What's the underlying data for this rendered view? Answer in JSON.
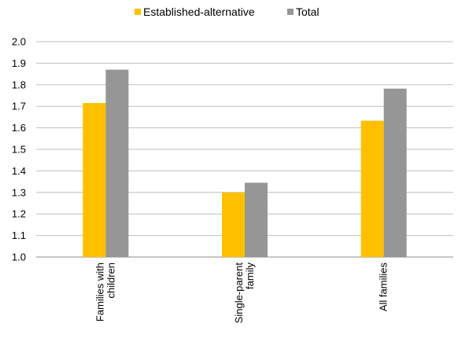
{
  "chart_data": {
    "type": "bar",
    "categories": [
      [
        "Families with",
        "children"
      ],
      [
        "Single-parent",
        "family"
      ],
      [
        "All families"
      ]
    ],
    "series": [
      {
        "name": "Established-alternative",
        "color": "#FFC000",
        "values": [
          1.715,
          1.3,
          1.633
        ]
      },
      {
        "name": "Total",
        "color": "#969696",
        "values": [
          1.87,
          1.345,
          1.782
        ]
      }
    ],
    "ylim": [
      1.0,
      2.0
    ],
    "yticks": [
      "1.0",
      "1.1",
      "1.2",
      "1.3",
      "1.4",
      "1.5",
      "1.6",
      "1.7",
      "1.8",
      "1.9",
      "2.0"
    ],
    "grid": true,
    "legend_position": "top"
  }
}
